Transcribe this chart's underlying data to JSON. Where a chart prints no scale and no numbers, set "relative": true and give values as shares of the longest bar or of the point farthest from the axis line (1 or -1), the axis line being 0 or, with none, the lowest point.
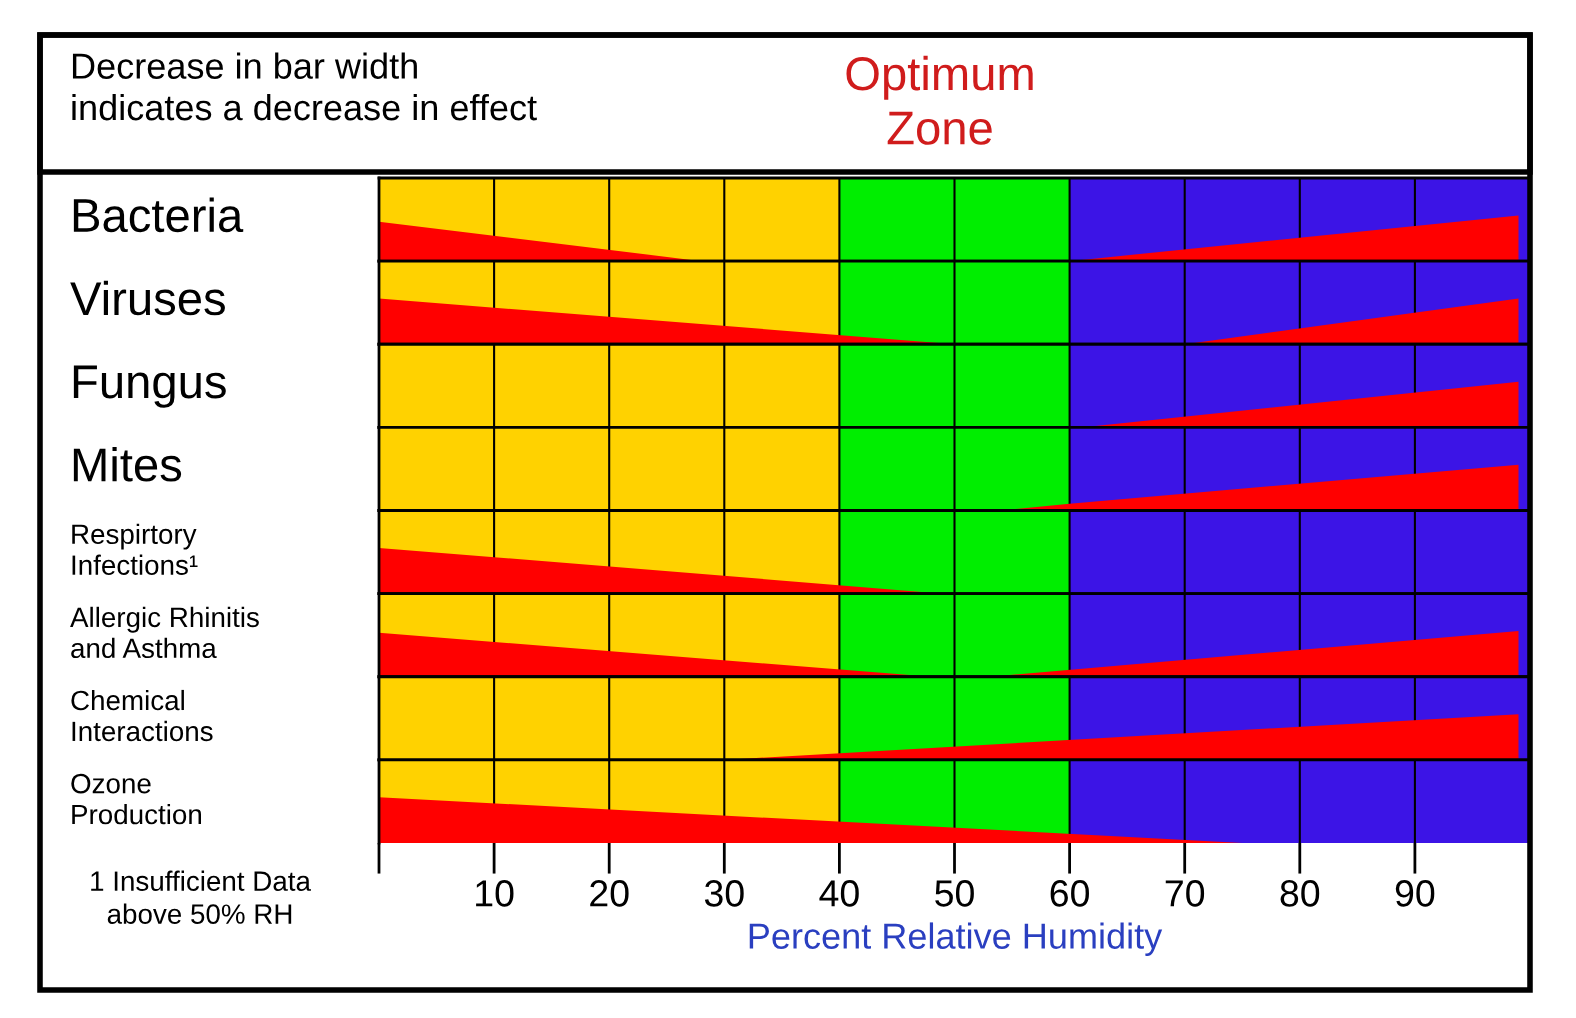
{
  "chart_data": [
    {
      "type": "area",
      "ylabel": "Bacteria",
      "relative": true,
      "xlim": [
        0,
        100
      ],
      "xticks": [
        10,
        20,
        30,
        40,
        50,
        60,
        70,
        80,
        90
      ],
      "grid": "x",
      "tick_labels": false,
      "annotations": [
        "Decrease in bar width\nindicates a decrease in effect",
        "Optimum\nZone"
      ],
      "bands": [
        {
          "axis": "x",
          "from": 0,
          "to": 40,
          "color": "#ffd200"
        },
        {
          "axis": "x",
          "from": 40,
          "to": 60,
          "color": "#00ee00"
        },
        {
          "axis": "x",
          "from": 60,
          "to": 100,
          "color": "#3c14e6"
        }
      ],
      "series": [
        {
          "color": "#ff0000",
          "x": [
            0,
            28
          ],
          "values": [
            0.86,
            0
          ]
        },
        {
          "color": "#ff0000",
          "x": [
            60,
            99
          ],
          "values": [
            0,
            1
          ]
        }
      ]
    },
    {
      "type": "area",
      "ylabel": "Viruses",
      "relative": true,
      "xlim": [
        0,
        100
      ],
      "xticks": [
        10,
        20,
        30,
        40,
        50,
        60,
        70,
        80,
        90
      ],
      "grid": "x",
      "tick_labels": false,
      "bands": [
        {
          "axis": "x",
          "from": 0,
          "to": 40,
          "color": "#ffd200"
        },
        {
          "axis": "x",
          "from": 40,
          "to": 60,
          "color": "#00ee00"
        },
        {
          "axis": "x",
          "from": 60,
          "to": 100,
          "color": "#3c14e6"
        }
      ],
      "series": [
        {
          "color": "#ff0000",
          "x": [
            0,
            50
          ],
          "values": [
            1,
            0
          ]
        },
        {
          "color": "#ff0000",
          "x": [
            70,
            99
          ],
          "values": [
            0,
            1
          ]
        }
      ]
    },
    {
      "type": "area",
      "ylabel": "Fungus",
      "relative": true,
      "xlim": [
        0,
        100
      ],
      "xticks": [
        10,
        20,
        30,
        40,
        50,
        60,
        70,
        80,
        90
      ],
      "grid": "x",
      "tick_labels": false,
      "bands": [
        {
          "axis": "x",
          "from": 0,
          "to": 40,
          "color": "#ffd200"
        },
        {
          "axis": "x",
          "from": 40,
          "to": 60,
          "color": "#00ee00"
        },
        {
          "axis": "x",
          "from": 60,
          "to": 100,
          "color": "#3c14e6"
        }
      ],
      "series": [
        {
          "color": "#ff0000",
          "x": [
            61,
            99
          ],
          "values": [
            0,
            1
          ]
        }
      ]
    },
    {
      "type": "area",
      "ylabel": "Mites",
      "relative": true,
      "xlim": [
        0,
        100
      ],
      "xticks": [
        10,
        20,
        30,
        40,
        50,
        60,
        70,
        80,
        90
      ],
      "grid": "x",
      "tick_labels": false,
      "bands": [
        {
          "axis": "x",
          "from": 0,
          "to": 40,
          "color": "#ffd200"
        },
        {
          "axis": "x",
          "from": 40,
          "to": 60,
          "color": "#00ee00"
        },
        {
          "axis": "x",
          "from": 60,
          "to": 100,
          "color": "#3c14e6"
        }
      ],
      "series": [
        {
          "color": "#ff0000",
          "x": [
            54,
            60,
            99
          ],
          "values": [
            0,
            0.15,
            1
          ]
        }
      ]
    },
    {
      "type": "area",
      "ylabel": "Respirtory\nInfections¹",
      "relative": true,
      "xlim": [
        0,
        100
      ],
      "xticks": [
        10,
        20,
        30,
        40,
        50,
        60,
        70,
        80,
        90
      ],
      "grid": "x",
      "tick_labels": false,
      "bands": [
        {
          "axis": "x",
          "from": 0,
          "to": 40,
          "color": "#ffd200"
        },
        {
          "axis": "x",
          "from": 40,
          "to": 60,
          "color": "#00ee00"
        },
        {
          "axis": "x",
          "from": 60,
          "to": 100,
          "color": "#3c14e6"
        }
      ],
      "series": [
        {
          "color": "#ff0000",
          "x": [
            0,
            49
          ],
          "values": [
            1,
            0
          ]
        }
      ]
    },
    {
      "type": "area",
      "ylabel": "Allergic Rhinitis\nand Asthma",
      "relative": true,
      "xlim": [
        0,
        100
      ],
      "xticks": [
        10,
        20,
        30,
        40,
        50,
        60,
        70,
        80,
        90
      ],
      "grid": "x",
      "tick_labels": false,
      "bands": [
        {
          "axis": "x",
          "from": 0,
          "to": 40,
          "color": "#ffd200"
        },
        {
          "axis": "x",
          "from": 40,
          "to": 60,
          "color": "#00ee00"
        },
        {
          "axis": "x",
          "from": 60,
          "to": 100,
          "color": "#3c14e6"
        }
      ],
      "series": [
        {
          "color": "#ff0000",
          "x": [
            0,
            48
          ],
          "values": [
            0.96,
            0
          ]
        },
        {
          "color": "#ff0000",
          "x": [
            53,
            99
          ],
          "values": [
            0,
            1
          ]
        }
      ]
    },
    {
      "type": "area",
      "ylabel": "Chemical\nInteractions",
      "relative": true,
      "xlim": [
        0,
        100
      ],
      "xticks": [
        10,
        20,
        30,
        40,
        50,
        60,
        70,
        80,
        90
      ],
      "grid": "x",
      "tick_labels": false,
      "bands": [
        {
          "axis": "x",
          "from": 0,
          "to": 40,
          "color": "#ffd200"
        },
        {
          "axis": "x",
          "from": 40,
          "to": 60,
          "color": "#00ee00"
        },
        {
          "axis": "x",
          "from": 60,
          "to": 100,
          "color": "#3c14e6"
        }
      ],
      "series": [
        {
          "color": "#ff0000",
          "x": [
            30,
            99
          ],
          "values": [
            0,
            1
          ]
        }
      ]
    },
    {
      "type": "area",
      "ylabel": "Ozone\nProduction",
      "xlabel": "Percent Relative Humidity",
      "relative": true,
      "xlim": [
        0,
        100
      ],
      "xticks": [
        {
          "value": 0,
          "label": null
        },
        10,
        20,
        30,
        40,
        50,
        60,
        70,
        80,
        90
      ],
      "grid": "x",
      "tick_labels": "x",
      "annotations": [
        "1 Insufficient Data\nabove 50% RH"
      ],
      "bands": [
        {
          "axis": "x",
          "from": 0,
          "to": 40,
          "color": "#ffd200"
        },
        {
          "axis": "x",
          "from": 40,
          "to": 60,
          "color": "#00ee00"
        },
        {
          "axis": "x",
          "from": 60,
          "to": 100,
          "color": "#3c14e6"
        }
      ],
      "series": [
        {
          "color": "#ff0000",
          "x": [
            0,
            75
          ],
          "values": [
            1,
            0
          ]
        }
      ]
    }
  ]
}
